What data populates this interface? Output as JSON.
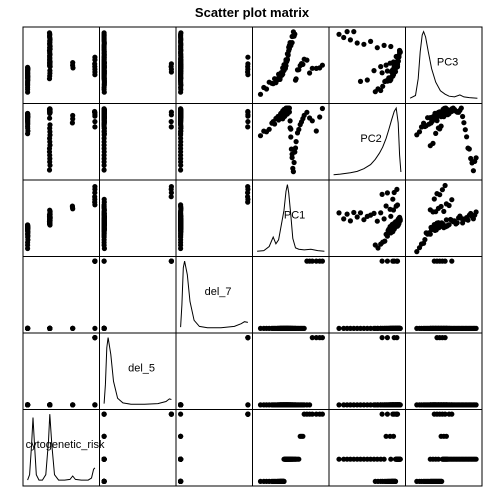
{
  "chart_data": {
    "type": "scatter",
    "title": "Scatter plot matrix",
    "variables": [
      "cytogenetic_risk",
      "del_5",
      "del_7",
      "PC1",
      "PC2",
      "PC3"
    ],
    "diagonal": "density",
    "grid": false,
    "axis_range_normalized": [
      0,
      1
    ],
    "variables_data": {
      "cytogenetic_risk": {
        "levels": [
          0.0,
          0.33,
          0.67,
          1.0
        ],
        "counts": [
          26,
          34,
          3,
          7
        ]
      },
      "del_5": {
        "levels": [
          0.0,
          1.0
        ],
        "counts": [
          66,
          4
        ]
      },
      "del_7": {
        "levels": [
          0.0,
          1.0
        ],
        "counts": [
          64,
          6
        ]
      },
      "PC1": {
        "points": [
          0.05,
          0.1,
          0.14,
          0.18,
          0.22,
          0.24,
          0.26,
          0.28,
          0.3,
          0.31,
          0.32,
          0.33,
          0.34,
          0.34,
          0.35,
          0.35,
          0.36,
          0.36,
          0.37,
          0.37,
          0.38,
          0.38,
          0.39,
          0.39,
          0.4,
          0.4,
          0.4,
          0.41,
          0.41,
          0.42,
          0.42,
          0.43,
          0.43,
          0.43,
          0.44,
          0.44,
          0.45,
          0.45,
          0.45,
          0.46,
          0.46,
          0.47,
          0.47,
          0.48,
          0.48,
          0.49,
          0.49,
          0.5,
          0.5,
          0.51,
          0.52,
          0.52,
          0.53,
          0.54,
          0.55,
          0.56,
          0.57,
          0.58,
          0.6,
          0.62,
          0.64,
          0.66,
          0.68,
          0.7,
          0.74,
          0.78,
          0.82,
          0.88,
          0.93,
          0.97
        ]
      },
      "PC2": {
        "points": [
          0.62,
          0.66,
          0.7,
          0.73,
          0.76,
          0.78,
          0.8,
          0.81,
          0.82,
          0.83,
          0.84,
          0.85,
          0.86,
          0.86,
          0.87,
          0.87,
          0.88,
          0.88,
          0.89,
          0.89,
          0.9,
          0.9,
          0.91,
          0.91,
          0.92,
          0.92,
          0.92,
          0.93,
          0.93,
          0.94,
          0.94,
          0.95,
          0.95,
          0.95,
          0.96,
          0.96,
          0.96,
          0.97,
          0.97,
          0.97,
          0.98,
          0.98,
          0.98,
          0.99,
          0.99,
          0.85,
          0.75,
          0.65,
          0.55,
          0.45,
          0.35,
          0.25,
          0.15,
          0.08,
          0.2,
          0.3,
          0.4,
          0.5,
          0.6,
          0.7,
          0.78,
          0.84,
          0.89,
          0.93,
          0.95,
          0.88,
          0.8,
          0.72,
          0.9,
          0.94
        ]
      },
      "PC3": {
        "points": [
          0.1,
          0.14,
          0.17,
          0.2,
          0.22,
          0.24,
          0.26,
          0.28,
          0.3,
          0.31,
          0.32,
          0.33,
          0.34,
          0.35,
          0.36,
          0.37,
          0.38,
          0.39,
          0.4,
          0.41,
          0.42,
          0.43,
          0.44,
          0.45,
          0.46,
          0.47,
          0.48,
          0.49,
          0.5,
          0.51,
          0.52,
          0.53,
          0.54,
          0.55,
          0.56,
          0.58,
          0.6,
          0.62,
          0.64,
          0.66,
          0.68,
          0.7,
          0.72,
          0.74,
          0.76,
          0.78,
          0.8,
          0.82,
          0.84,
          0.86,
          0.88,
          0.9,
          0.92,
          0.94,
          0.96,
          0.98,
          0.3,
          0.34,
          0.38,
          0.42,
          0.46,
          0.5,
          0.54,
          0.58,
          0.62,
          0.36,
          0.4,
          0.44,
          0.48,
          0.52
        ]
      }
    },
    "density_curves": {
      "cytogenetic_risk": [
        [
          0.0,
          0.02
        ],
        [
          0.03,
          0.1
        ],
        [
          0.06,
          0.55
        ],
        [
          0.08,
          0.95
        ],
        [
          0.1,
          0.6
        ],
        [
          0.13,
          0.1
        ],
        [
          0.17,
          0.02
        ],
        [
          0.22,
          0.02
        ],
        [
          0.27,
          0.1
        ],
        [
          0.31,
          0.6
        ],
        [
          0.33,
          1.0
        ],
        [
          0.36,
          0.55
        ],
        [
          0.4,
          0.1
        ],
        [
          0.46,
          0.02
        ],
        [
          0.55,
          0.02
        ],
        [
          0.63,
          0.03
        ],
        [
          0.67,
          0.08
        ],
        [
          0.71,
          0.03
        ],
        [
          0.8,
          0.02
        ],
        [
          0.9,
          0.02
        ],
        [
          0.95,
          0.05
        ],
        [
          0.98,
          0.18
        ],
        [
          1.0,
          0.2
        ]
      ],
      "del_5": [
        [
          0.0,
          0.02
        ],
        [
          0.02,
          0.3
        ],
        [
          0.04,
          0.85
        ],
        [
          0.06,
          1.0
        ],
        [
          0.1,
          0.75
        ],
        [
          0.14,
          0.35
        ],
        [
          0.2,
          0.1
        ],
        [
          0.28,
          0.03
        ],
        [
          0.4,
          0.01
        ],
        [
          0.6,
          0.01
        ],
        [
          0.8,
          0.02
        ],
        [
          0.92,
          0.05
        ],
        [
          0.97,
          0.09
        ],
        [
          1.0,
          0.08
        ]
      ],
      "del_7": [
        [
          0.0,
          0.02
        ],
        [
          0.02,
          0.35
        ],
        [
          0.04,
          0.9
        ],
        [
          0.06,
          1.0
        ],
        [
          0.1,
          0.8
        ],
        [
          0.14,
          0.4
        ],
        [
          0.2,
          0.12
        ],
        [
          0.28,
          0.03
        ],
        [
          0.4,
          0.01
        ],
        [
          0.6,
          0.01
        ],
        [
          0.8,
          0.03
        ],
        [
          0.9,
          0.07
        ],
        [
          0.95,
          0.1
        ],
        [
          1.0,
          0.09
        ]
      ],
      "PC1": [
        [
          0.0,
          0.01
        ],
        [
          0.1,
          0.02
        ],
        [
          0.18,
          0.08
        ],
        [
          0.24,
          0.22
        ],
        [
          0.28,
          0.12
        ],
        [
          0.32,
          0.18
        ],
        [
          0.36,
          0.4
        ],
        [
          0.4,
          0.62
        ],
        [
          0.43,
          0.9
        ],
        [
          0.45,
          1.0
        ],
        [
          0.47,
          0.88
        ],
        [
          0.5,
          0.55
        ],
        [
          0.53,
          0.2
        ],
        [
          0.57,
          0.06
        ],
        [
          0.62,
          0.04
        ],
        [
          0.7,
          0.03
        ],
        [
          0.8,
          0.04
        ],
        [
          0.9,
          0.02
        ],
        [
          1.0,
          0.01
        ]
      ],
      "PC2": [
        [
          0.0,
          0.01
        ],
        [
          0.1,
          0.02
        ],
        [
          0.25,
          0.04
        ],
        [
          0.35,
          0.06
        ],
        [
          0.45,
          0.1
        ],
        [
          0.55,
          0.16
        ],
        [
          0.62,
          0.24
        ],
        [
          0.68,
          0.33
        ],
        [
          0.73,
          0.42
        ],
        [
          0.78,
          0.55
        ],
        [
          0.82,
          0.68
        ],
        [
          0.86,
          0.82
        ],
        [
          0.9,
          0.95
        ],
        [
          0.93,
          1.0
        ],
        [
          0.96,
          0.78
        ],
        [
          0.98,
          0.3
        ],
        [
          1.0,
          0.05
        ]
      ],
      "PC3": [
        [
          0.0,
          0.01
        ],
        [
          0.08,
          0.05
        ],
        [
          0.12,
          0.3
        ],
        [
          0.15,
          0.7
        ],
        [
          0.18,
          0.95
        ],
        [
          0.2,
          1.0
        ],
        [
          0.23,
          0.92
        ],
        [
          0.27,
          0.7
        ],
        [
          0.32,
          0.45
        ],
        [
          0.38,
          0.25
        ],
        [
          0.45,
          0.12
        ],
        [
          0.52,
          0.07
        ],
        [
          0.58,
          0.04
        ],
        [
          0.66,
          0.03
        ],
        [
          0.74,
          0.06
        ],
        [
          0.8,
          0.03
        ],
        [
          0.88,
          0.02
        ],
        [
          1.0,
          0.01
        ]
      ]
    }
  }
}
